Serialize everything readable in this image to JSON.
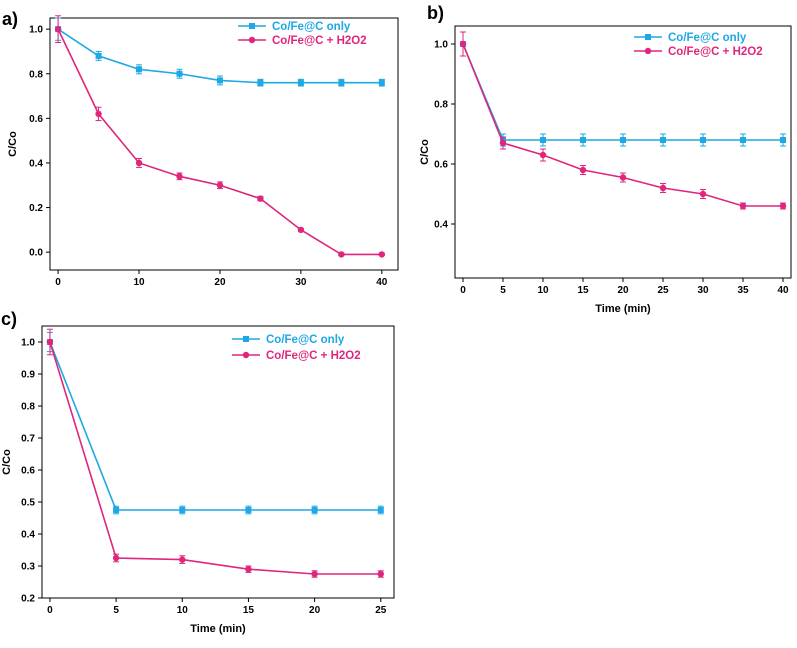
{
  "chart_data": [
    {
      "panel": "a)",
      "type": "line",
      "title": "",
      "xlabel": "",
      "ylabel": "C/Co",
      "xlim": [
        -1,
        42
      ],
      "ylim": [
        -0.08,
        1.05
      ],
      "xticks": [
        0,
        10,
        20,
        30,
        40
      ],
      "yticks": [
        0.0,
        0.2,
        0.4,
        0.6,
        0.8,
        1.0
      ],
      "ytick_labels": [
        "0.0",
        "0.2",
        "0.4",
        "0.6",
        "0.8",
        "1.0"
      ],
      "x": [
        0,
        5,
        10,
        15,
        20,
        25,
        30,
        35,
        40
      ],
      "series": [
        {
          "name": "Co/Fe@C only",
          "color": "#1ea8e4",
          "marker": "square",
          "values": [
            1.0,
            0.88,
            0.82,
            0.8,
            0.77,
            0.76,
            0.76,
            0.76,
            0.76
          ],
          "errors": [
            0.05,
            0.02,
            0.02,
            0.02,
            0.02,
            0.015,
            0.015,
            0.015,
            0.015
          ]
        },
        {
          "name": "Co/Fe@C  + H2O2",
          "color": "#e0267c",
          "marker": "circle",
          "values": [
            1.0,
            0.62,
            0.4,
            0.34,
            0.3,
            0.24,
            0.1,
            -0.01,
            -0.01
          ],
          "errors": [
            0.06,
            0.03,
            0.02,
            0.015,
            0.015,
            0.01,
            0.005,
            0.005,
            0.005
          ]
        }
      ]
    },
    {
      "panel": "b)",
      "type": "line",
      "title": "",
      "xlabel": "Time (min)",
      "ylabel": "C/Co",
      "xlim": [
        -1,
        41
      ],
      "ylim": [
        0.22,
        1.06
      ],
      "xticks": [
        0,
        5,
        10,
        15,
        20,
        25,
        30,
        35,
        40
      ],
      "yticks": [
        0.4,
        0.6,
        0.8,
        1.0
      ],
      "ytick_labels": [
        "0.4",
        "0.6",
        "0.8",
        "1.0"
      ],
      "x": [
        0,
        5,
        10,
        15,
        20,
        25,
        30,
        35,
        40
      ],
      "series": [
        {
          "name": "Co/Fe@C  only",
          "color": "#1ea8e4",
          "marker": "square",
          "values": [
            1.0,
            0.68,
            0.68,
            0.68,
            0.68,
            0.68,
            0.68,
            0.68,
            0.68
          ],
          "errors": [
            0.04,
            0.02,
            0.02,
            0.02,
            0.02,
            0.02,
            0.02,
            0.02,
            0.02
          ]
        },
        {
          "name": "Co/Fe@C  + H2O2",
          "color": "#e0267c",
          "marker": "circle",
          "values": [
            1.0,
            0.67,
            0.63,
            0.58,
            0.555,
            0.52,
            0.5,
            0.46,
            0.46
          ],
          "errors": [
            0.04,
            0.02,
            0.02,
            0.015,
            0.015,
            0.015,
            0.015,
            0.01,
            0.01
          ]
        }
      ]
    },
    {
      "panel": "c)",
      "type": "line",
      "title": "",
      "xlabel": "Time (min)",
      "ylabel": "C/Co",
      "xlim": [
        -0.6,
        26
      ],
      "ylim": [
        0.2,
        1.05
      ],
      "xticks": [
        0,
        5,
        10,
        15,
        20,
        25
      ],
      "yticks": [
        0.2,
        0.3,
        0.4,
        0.5,
        0.6,
        0.7,
        0.8,
        0.9,
        1.0
      ],
      "ytick_labels": [
        "0.2",
        "0.3",
        "0.4",
        "0.5",
        "0.6",
        "0.7",
        "0.8",
        "0.9",
        "1.0"
      ],
      "x": [
        0,
        5,
        10,
        15,
        20,
        25
      ],
      "series": [
        {
          "name": "Co/Fe@C only",
          "color": "#1ea8e4",
          "marker": "square",
          "values": [
            1.0,
            0.475,
            0.475,
            0.475,
            0.475,
            0.475
          ],
          "errors": [
            0.03,
            0.012,
            0.012,
            0.012,
            0.012,
            0.012
          ]
        },
        {
          "name": "Co/Fe@C  + H2O2",
          "color": "#e0267c",
          "marker": "circle",
          "values": [
            1.0,
            0.325,
            0.32,
            0.29,
            0.275,
            0.275
          ],
          "errors": [
            0.04,
            0.012,
            0.012,
            0.01,
            0.01,
            0.01
          ]
        }
      ]
    }
  ]
}
